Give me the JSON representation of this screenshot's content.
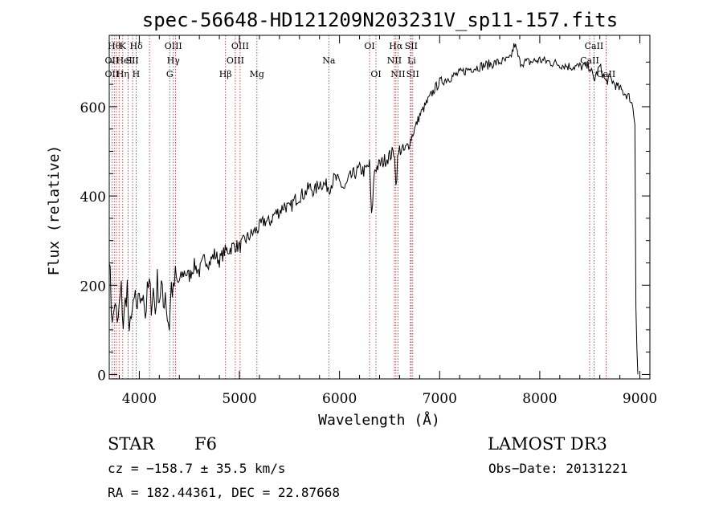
{
  "chart_data": {
    "type": "line",
    "title": "spec-56648-HD121209N203231V_sp11-157.fits",
    "xlabel": "Wavelength (Å)",
    "ylabel": "Flux (relative)",
    "xlim": [
      3700,
      9100
    ],
    "ylim": [
      -10,
      760
    ],
    "x_ticks": [
      4000,
      5000,
      6000,
      7000,
      8000,
      9000
    ],
    "y_ticks": [
      0,
      200,
      400,
      600
    ],
    "series": [
      {
        "name": "flux",
        "x": [
          3700,
          3720,
          3740,
          3760,
          3780,
          3800,
          3820,
          3840,
          3860,
          3880,
          3900,
          3920,
          3940,
          3960,
          3980,
          4000,
          4020,
          4040,
          4060,
          4080,
          4100,
          4120,
          4140,
          4160,
          4180,
          4200,
          4220,
          4240,
          4260,
          4280,
          4300,
          4320,
          4340,
          4360,
          4380,
          4400,
          4450,
          4500,
          4550,
          4600,
          4650,
          4700,
          4750,
          4800,
          4850,
          4900,
          4950,
          5000,
          5050,
          5100,
          5150,
          5200,
          5250,
          5300,
          5350,
          5400,
          5450,
          5500,
          5550,
          5600,
          5650,
          5700,
          5750,
          5800,
          5850,
          5900,
          5950,
          6000,
          6050,
          6100,
          6150,
          6200,
          6250,
          6300,
          6320,
          6350,
          6400,
          6450,
          6500,
          6550,
          6563,
          6580,
          6600,
          6650,
          6700,
          6750,
          6800,
          6850,
          6900,
          6950,
          7000,
          7050,
          7100,
          7150,
          7200,
          7300,
          7400,
          7500,
          7600,
          7700,
          7750,
          7800,
          7900,
          8000,
          8100,
          8200,
          8300,
          8400,
          8500,
          8540,
          8600,
          8660,
          8700,
          8750,
          8800,
          8850,
          8900,
          8930,
          8950,
          8960,
          8970,
          8980
        ],
        "y": [
          280,
          150,
          120,
          170,
          100,
          150,
          190,
          110,
          160,
          200,
          70,
          150,
          140,
          180,
          120,
          190,
          150,
          200,
          130,
          180,
          200,
          160,
          190,
          140,
          210,
          170,
          200,
          150,
          190,
          130,
          110,
          200,
          180,
          220,
          200,
          210,
          230,
          220,
          245,
          230,
          260,
          250,
          270,
          255,
          275,
          280,
          290,
          285,
          300,
          310,
          320,
          330,
          345,
          340,
          360,
          365,
          380,
          370,
          390,
          400,
          405,
          420,
          410,
          430,
          425,
          420,
          440,
          430,
          415,
          440,
          450,
          460,
          455,
          470,
          350,
          460,
          470,
          480,
          490,
          500,
          420,
          480,
          505,
          500,
          520,
          550,
          580,
          600,
          620,
          640,
          655,
          660,
          665,
          670,
          675,
          685,
          690,
          695,
          700,
          705,
          740,
          700,
          700,
          705,
          700,
          695,
          690,
          690,
          690,
          660,
          690,
          655,
          665,
          650,
          640,
          630,
          620,
          600,
          560,
          150,
          60,
          0
        ]
      }
    ],
    "lines": [
      {
        "wl": 3750,
        "label": "Hθ",
        "row": 0
      },
      {
        "wl": 3835,
        "label": "K",
        "row": 0
      },
      {
        "wl": 3970,
        "label": "Hδ",
        "row": 0
      },
      {
        "wl": 4340,
        "label": "OIII",
        "row": 0
      },
      {
        "wl": 5007,
        "label": "OIII",
        "row": 0
      },
      {
        "wl": 6300,
        "label": "OI",
        "row": 0
      },
      {
        "wl": 6563,
        "label": "Hα",
        "row": 0
      },
      {
        "wl": 6716,
        "label": "SII",
        "row": 0
      },
      {
        "wl": 8542,
        "label": "CaII",
        "row": 0
      },
      {
        "wl": 3727,
        "label": "OII",
        "row": 1
      },
      {
        "wl": 3850,
        "label": "HeI",
        "row": 1
      },
      {
        "wl": 3930,
        "label": "SII",
        "row": 1
      },
      {
        "wl": 4340,
        "label": "Hγ",
        "row": 1
      },
      {
        "wl": 4959,
        "label": "OIII",
        "row": 1
      },
      {
        "wl": 5893,
        "label": "Na",
        "row": 1
      },
      {
        "wl": 6548,
        "label": "NII",
        "row": 1
      },
      {
        "wl": 6720,
        "label": "Li",
        "row": 1
      },
      {
        "wl": 8498,
        "label": "CaII",
        "row": 1
      },
      {
        "wl": 3727,
        "label": "OII",
        "row": 2
      },
      {
        "wl": 3835,
        "label": "Hη",
        "row": 2
      },
      {
        "wl": 3968,
        "label": "H",
        "row": 2
      },
      {
        "wl": 4304,
        "label": "G",
        "row": 2
      },
      {
        "wl": 4861,
        "label": "Hβ",
        "row": 2
      },
      {
        "wl": 5175,
        "label": "Mg",
        "row": 2
      },
      {
        "wl": 6364,
        "label": "OI",
        "row": 2
      },
      {
        "wl": 6584,
        "label": "NII",
        "row": 2
      },
      {
        "wl": 6731,
        "label": "SII",
        "row": 2
      },
      {
        "wl": 8662,
        "label": "CaII",
        "row": 2
      }
    ],
    "line_marks": [
      3727,
      3750,
      3771,
      3798,
      3835,
      3889,
      3933,
      3968,
      4102,
      4304,
      4340,
      4363,
      4861,
      4959,
      5007,
      5175,
      5893,
      6300,
      6364,
      6548,
      6563,
      6584,
      6708,
      6716,
      6731,
      8498,
      8542,
      8662
    ]
  },
  "info": {
    "object_class": "STAR",
    "subclass": "F6",
    "survey": "LAMOST DR3",
    "cz": "cz = −158.7 ± 35.5 km/s",
    "obs_date": "Obs−Date: 20131221",
    "coords": "RA = 182.44361, DEC =  22.87668"
  },
  "colors": {
    "axes": "#000000",
    "line_marker": "#b22222",
    "spectrum": "#000000"
  }
}
